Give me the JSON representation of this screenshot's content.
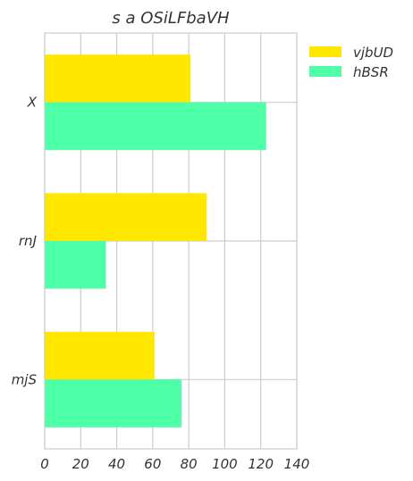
{
  "chart_data": {
    "type": "bar",
    "orientation": "horizontal",
    "title": "s a OSiLFbaVH",
    "xlabel": "",
    "ylabel": "",
    "categories": [
      "X",
      "rnJ",
      "mjS"
    ],
    "series": [
      {
        "name": "vjbUD",
        "color": "#FFE700",
        "values": [
          81,
          90,
          61
        ]
      },
      {
        "name": "hBSR",
        "color": "#4DFFA6",
        "values": [
          123,
          34,
          76
        ]
      }
    ],
    "xlim": [
      0,
      140
    ],
    "xticks": [
      "0",
      "20",
      "40",
      "60",
      "80",
      "100",
      "120",
      "140"
    ],
    "grid": true,
    "legend": "outside-top-right"
  }
}
